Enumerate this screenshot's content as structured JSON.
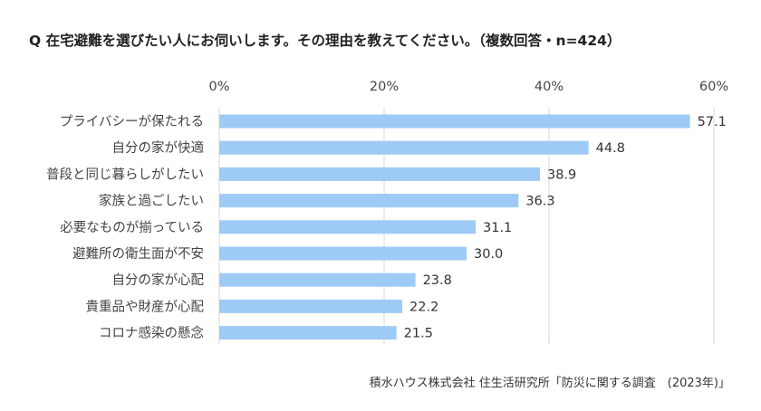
{
  "title": "Q 在宅避難を選びたい人にお伺いします。その理由を教えてください。（複数回答・n=424）",
  "source": "積水ハウス株式会社 住生活研究所「防災に関する調査　(2023年)」",
  "colors": {
    "bar": "#9ecbf5",
    "grid": "#d9d9d9"
  },
  "chart_data": {
    "type": "bar",
    "orientation": "horizontal",
    "categories": [
      "プライバシーが保たれる",
      "自分の家が快適",
      "普段と同じ暮らしがしたい",
      "家族と過ごしたい",
      "必要なものが揃っている",
      "避難所の衛生面が不安",
      "自分の家が心配",
      "貴重品や財産が心配",
      "コロナ感染の懸念"
    ],
    "values": [
      57.1,
      44.8,
      38.9,
      36.3,
      31.1,
      30.0,
      23.8,
      22.2,
      21.5
    ],
    "value_labels": [
      "57.1",
      "44.8",
      "38.9",
      "36.3",
      "31.1",
      "30.0",
      "23.8",
      "22.2",
      "21.5"
    ],
    "xlim": [
      0,
      60
    ],
    "xticks": [
      0,
      20,
      40,
      60
    ],
    "xtick_labels": [
      "0%",
      "20%",
      "40%",
      "60%"
    ],
    "axis_position": "top",
    "grid": true,
    "legend": "none"
  }
}
